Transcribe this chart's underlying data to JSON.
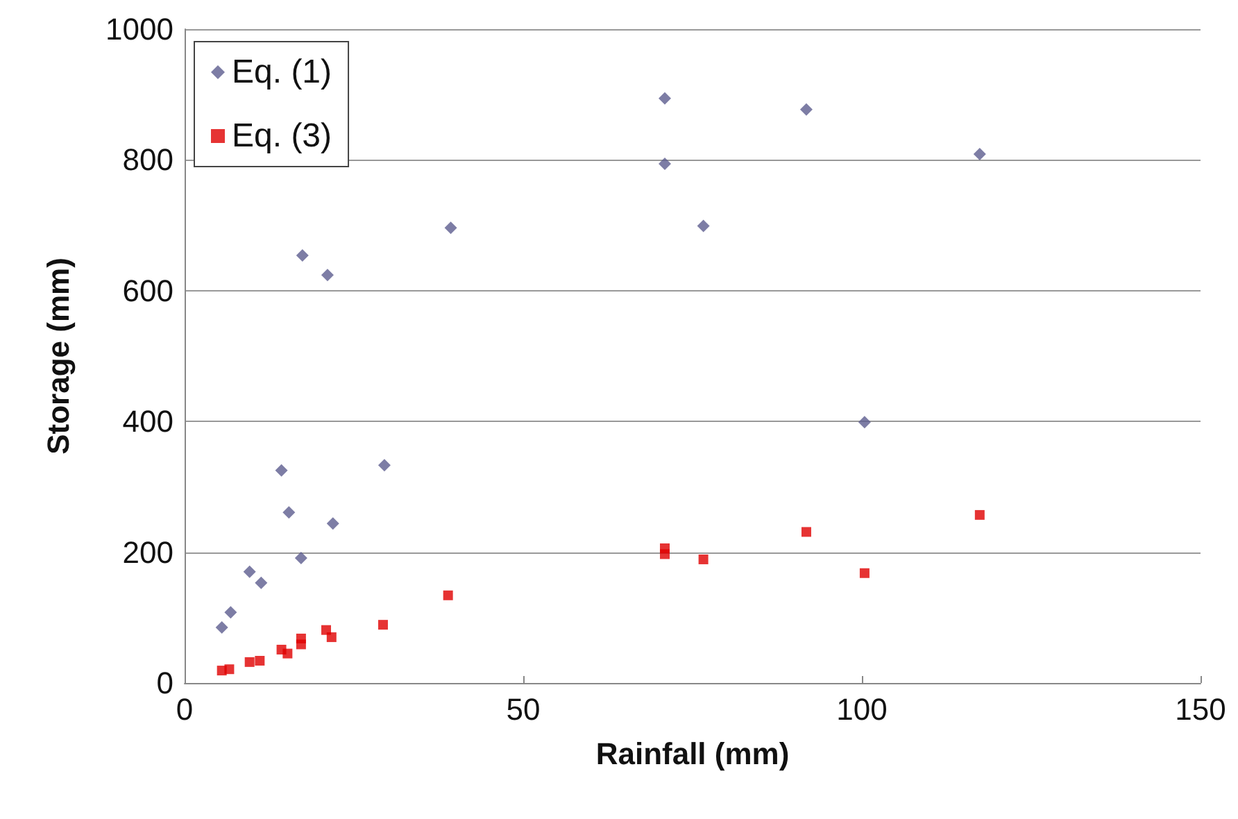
{
  "chart_data": {
    "type": "scatter",
    "xlabel": "Rainfall (mm)",
    "ylabel": "Storage (mm)",
    "xlim": [
      0,
      150
    ],
    "xticks": [
      0,
      50,
      100,
      150
    ],
    "ylim": [
      0,
      1000
    ],
    "yticks": [
      0,
      200,
      400,
      600,
      800,
      1000
    ],
    "grid": "y",
    "legend": "top left",
    "series": [
      {
        "name": "Eq. (1)",
        "color": "#5c5c8e",
        "marker": "diamond",
        "x": [
          5.5,
          6.8,
          9.6,
          11.3,
          14.3,
          15.4,
          17.2,
          21.9,
          29.5,
          17.4,
          21.1,
          39.3,
          70.9,
          70.9,
          76.6,
          91.8,
          117.4,
          100.4
        ],
        "values": [
          85,
          108,
          170,
          153,
          325,
          261,
          191,
          244,
          333,
          654,
          624,
          696,
          894,
          794,
          699,
          877,
          809,
          399
        ]
      },
      {
        "name": "Eq. (3)",
        "color": "#e00000",
        "marker": "square",
        "x": [
          5.5,
          6.6,
          9.6,
          11.1,
          14.3,
          15.2,
          17.2,
          17.2,
          20.9,
          21.7,
          29.3,
          38.9,
          70.9,
          70.9,
          76.6,
          91.8,
          100.4,
          117.4
        ],
        "values": [
          19,
          21,
          32,
          34,
          51,
          45,
          59,
          68,
          81,
          70,
          89,
          134,
          206,
          197,
          189,
          231,
          168,
          257
        ]
      }
    ]
  }
}
